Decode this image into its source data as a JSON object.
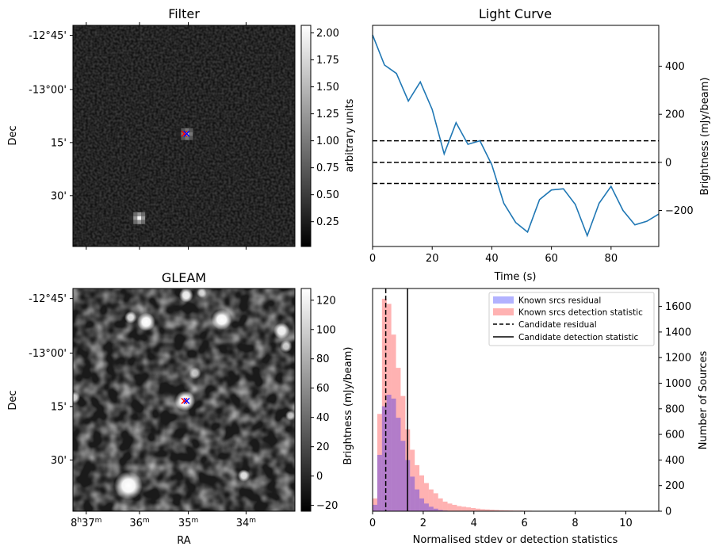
{
  "chart_data": [
    {
      "id": "filter",
      "type": "heatmap",
      "title": "Filter",
      "xlabel": "",
      "ylabel": "Dec",
      "y_ticks": [
        "-12°45'",
        "-13°00'",
        "15'",
        "30'"
      ],
      "colorbar": {
        "label": "arbitrary units",
        "range": [
          0.02,
          2.07
        ],
        "ticks": [
          "0.25",
          "0.50",
          "0.75",
          "1.00",
          "1.25",
          "1.50",
          "1.75",
          "2.00"
        ],
        "tick_values": [
          0.25,
          0.5,
          0.75,
          1.0,
          1.25,
          1.5,
          1.75,
          2.0
        ]
      },
      "colormap": "gray",
      "sources": [
        {
          "ra_frac": 0.505,
          "dec_frac": 0.49,
          "value": 1.6
        },
        {
          "ra_frac": 0.29,
          "dec_frac": 0.87,
          "value": 2.0
        }
      ],
      "markers": [
        {
          "symbol": "x",
          "color": "#ff0000"
        },
        {
          "symbol": "x",
          "color": "#0000ff"
        }
      ]
    },
    {
      "id": "light-curve",
      "type": "line",
      "title": "Light Curve",
      "xlabel": "Time (s)",
      "ylabel": "Brightness (mJy/beam)",
      "xlim": [
        0,
        96
      ],
      "ylim": [
        -350,
        570
      ],
      "x_ticks": [
        0,
        20,
        40,
        60,
        80
      ],
      "y_ticks": [
        -200,
        0,
        200,
        400
      ],
      "series": [
        {
          "color": "#1f77b4",
          "x": [
            0,
            4,
            8,
            12,
            16,
            20,
            24,
            28,
            32,
            36,
            40,
            44,
            48,
            52,
            56,
            60,
            64,
            68,
            72,
            76,
            80,
            84,
            88,
            92,
            96
          ],
          "y": [
            530,
            405,
            370,
            255,
            335,
            220,
            35,
            165,
            75,
            90,
            -10,
            -170,
            -250,
            -290,
            -155,
            -115,
            -110,
            -175,
            -305,
            -170,
            -100,
            -200,
            -260,
            -245,
            -215
          ]
        }
      ],
      "hlines": [
        {
          "y": 90,
          "style": "dashed",
          "color": "#000000"
        },
        {
          "y": 0,
          "style": "dashed",
          "color": "#000000"
        },
        {
          "y": -88,
          "style": "dashed",
          "color": "#000000"
        }
      ]
    },
    {
      "id": "gleam",
      "type": "heatmap",
      "title": "GLEAM",
      "xlabel": "RA",
      "ylabel": "Dec",
      "x_ticks": [
        "8h37m",
        "36m",
        "35m",
        "34m"
      ],
      "y_ticks": [
        "-12°45'",
        "-13°00'",
        "15'",
        "30'"
      ],
      "colorbar": {
        "label": "Brightness (mJy/beam)",
        "range": [
          -24,
          128
        ],
        "ticks": [
          "−20",
          "0",
          "20",
          "40",
          "60",
          "80",
          "100",
          "120"
        ],
        "tick_values": [
          -20,
          0,
          20,
          40,
          60,
          80,
          100,
          120
        ]
      },
      "colormap": "gray",
      "sources": [
        {
          "ra_frac": 0.505,
          "dec_frac": 0.505,
          "value": 130,
          "size": 1.0
        },
        {
          "ra_frac": 0.25,
          "dec_frac": 0.885,
          "value": 130,
          "size": 1.4
        },
        {
          "ra_frac": 0.33,
          "dec_frac": 0.15,
          "value": 130,
          "size": 0.9
        },
        {
          "ra_frac": 0.67,
          "dec_frac": 0.14,
          "value": 130,
          "size": 1.0
        },
        {
          "ra_frac": 0.51,
          "dec_frac": 0.03,
          "value": 120,
          "size": 0.7
        },
        {
          "ra_frac": 0.94,
          "dec_frac": 0.19,
          "value": 120,
          "size": 0.8
        },
        {
          "ra_frac": 0.26,
          "dec_frac": 0.13,
          "value": 110,
          "size": 0.6
        },
        {
          "ra_frac": 0.55,
          "dec_frac": 0.38,
          "value": 90,
          "size": 0.6
        },
        {
          "ra_frac": 0.96,
          "dec_frac": 0.26,
          "value": 100,
          "size": 0.6
        },
        {
          "ra_frac": 0.77,
          "dec_frac": 0.84,
          "value": 110,
          "size": 0.6
        },
        {
          "ra_frac": 0.005,
          "dec_frac": 0.49,
          "value": 100,
          "size": 0.6
        },
        {
          "ra_frac": 0.58,
          "dec_frac": 0.02,
          "value": 90,
          "size": 0.5
        },
        {
          "ra_frac": 0.98,
          "dec_frac": 0.57,
          "value": 90,
          "size": 0.5
        }
      ],
      "markers": [
        {
          "symbol": "x",
          "color": "#ff0000"
        },
        {
          "symbol": "x",
          "color": "#0000ff"
        }
      ]
    },
    {
      "id": "histogram",
      "type": "bar",
      "title": "",
      "xlabel": "Normalised stdev or detection statistics",
      "ylabel": "Number of Sources",
      "xlim": [
        0,
        11.3
      ],
      "ylim": [
        0,
        1740
      ],
      "x_ticks": [
        0,
        2,
        4,
        6,
        8,
        10
      ],
      "y_ticks": [
        0,
        200,
        400,
        600,
        800,
        1000,
        1200,
        1400,
        1600
      ],
      "bin_width": 0.185,
      "series": [
        {
          "name": "Known srcs residual",
          "color": "#0000ff",
          "alpha": 0.3,
          "x0": 0,
          "values": [
            50,
            440,
            820,
            910,
            880,
            730,
            550,
            400,
            270,
            170,
            100,
            60,
            35,
            20,
            10,
            5,
            3
          ]
        },
        {
          "name": "Known srcs detection statistic",
          "color": "#ff0000",
          "alpha": 0.3,
          "x0": 0,
          "values": [
            100,
            760,
            1660,
            1620,
            1380,
            1120,
            900,
            640,
            480,
            360,
            280,
            220,
            170,
            140,
            100,
            75,
            60,
            50,
            40,
            35,
            30,
            25,
            20,
            16,
            14,
            12,
            10,
            8,
            7,
            6,
            5,
            5,
            4,
            4,
            3,
            3,
            3,
            3,
            2,
            2,
            2,
            2,
            2,
            2,
            2,
            1,
            1,
            1,
            1,
            1,
            1,
            1,
            1,
            1,
            1,
            1,
            1,
            1,
            1
          ]
        }
      ],
      "vlines": [
        {
          "name": "Candidate residual",
          "x": 0.52,
          "style": "dashed",
          "color": "#000000"
        },
        {
          "name": "Candidate detection statistic",
          "x": 1.38,
          "style": "solid",
          "color": "#000000"
        }
      ]
    }
  ]
}
